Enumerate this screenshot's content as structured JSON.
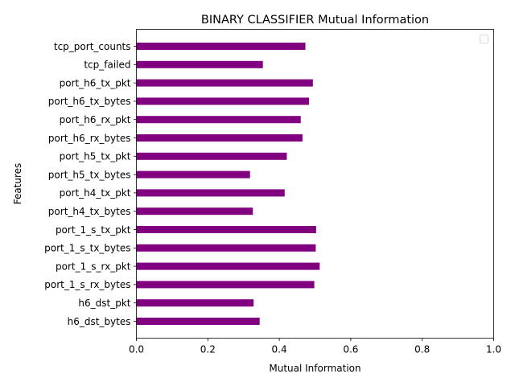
{
  "chart_data": {
    "type": "bar",
    "orientation": "horizontal",
    "title": "BINARY CLASSIFIER Mutual Information",
    "xlabel": "Mutual Information",
    "ylabel": "Features",
    "xlim": [
      0,
      1
    ],
    "xticks": [
      "0.0",
      "0.2",
      "0.4",
      "0.6",
      "0.8",
      "1.0"
    ],
    "bar_color": "#800080",
    "legend": "top-right, empty",
    "grid": false,
    "categories": [
      "h6_dst_bytes",
      "h6_dst_pkt",
      "port_1_s_rx_bytes",
      "port_1_s_rx_pkt",
      "port_1_s_tx_bytes",
      "port_1_s_tx_pkt",
      "port_h4_tx_bytes",
      "port_h4_tx_pkt",
      "port_h5_tx_bytes",
      "port_h5_tx_pkt",
      "port_h6_rx_bytes",
      "port_h6_rx_pkt",
      "port_h6_tx_bytes",
      "port_h6_tx_pkt",
      "tcp_failed",
      "tcp_port_counts"
    ],
    "values": [
      0.345,
      0.328,
      0.498,
      0.513,
      0.502,
      0.503,
      0.326,
      0.415,
      0.318,
      0.421,
      0.465,
      0.46,
      0.483,
      0.494,
      0.354,
      0.473
    ]
  }
}
